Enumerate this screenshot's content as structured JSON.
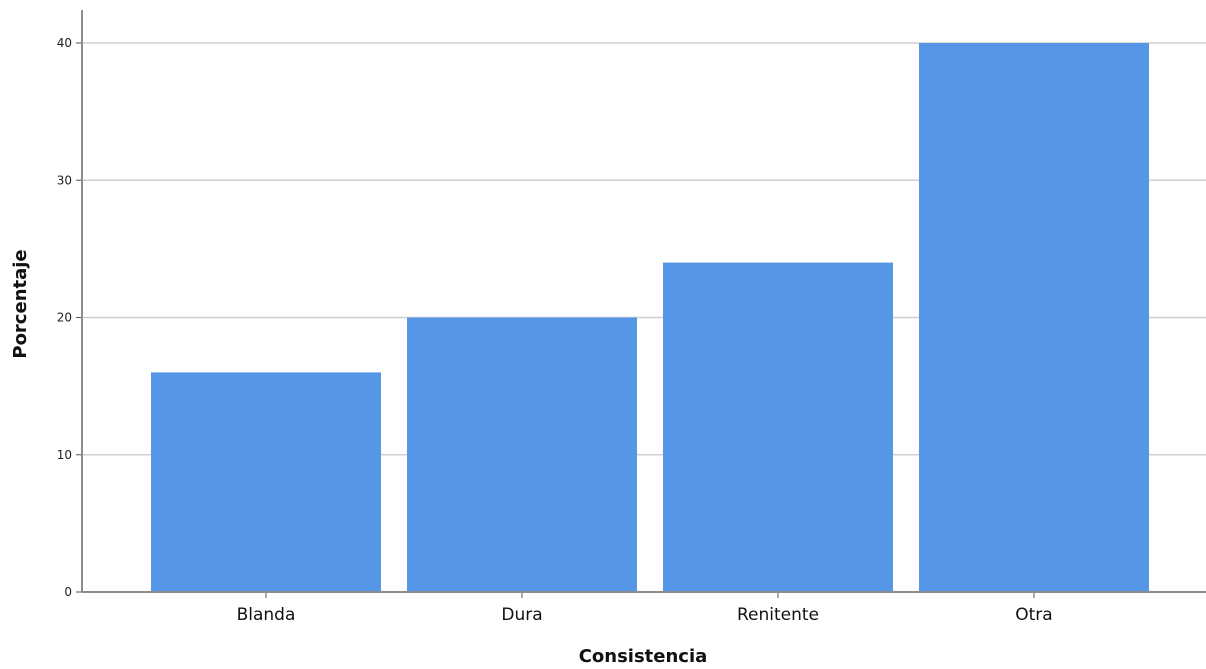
{
  "chart_data": {
    "type": "bar",
    "categories": [
      "Blanda",
      "Dura",
      "Renitente",
      "Otra"
    ],
    "values": [
      16,
      20,
      24,
      40
    ],
    "xlabel": "Consistencia",
    "ylabel": "Porcentaje",
    "ylim": [
      0,
      42
    ],
    "yticks": [
      0,
      10,
      20,
      30,
      40
    ],
    "grid": true,
    "bar_color": "#5596e6"
  }
}
